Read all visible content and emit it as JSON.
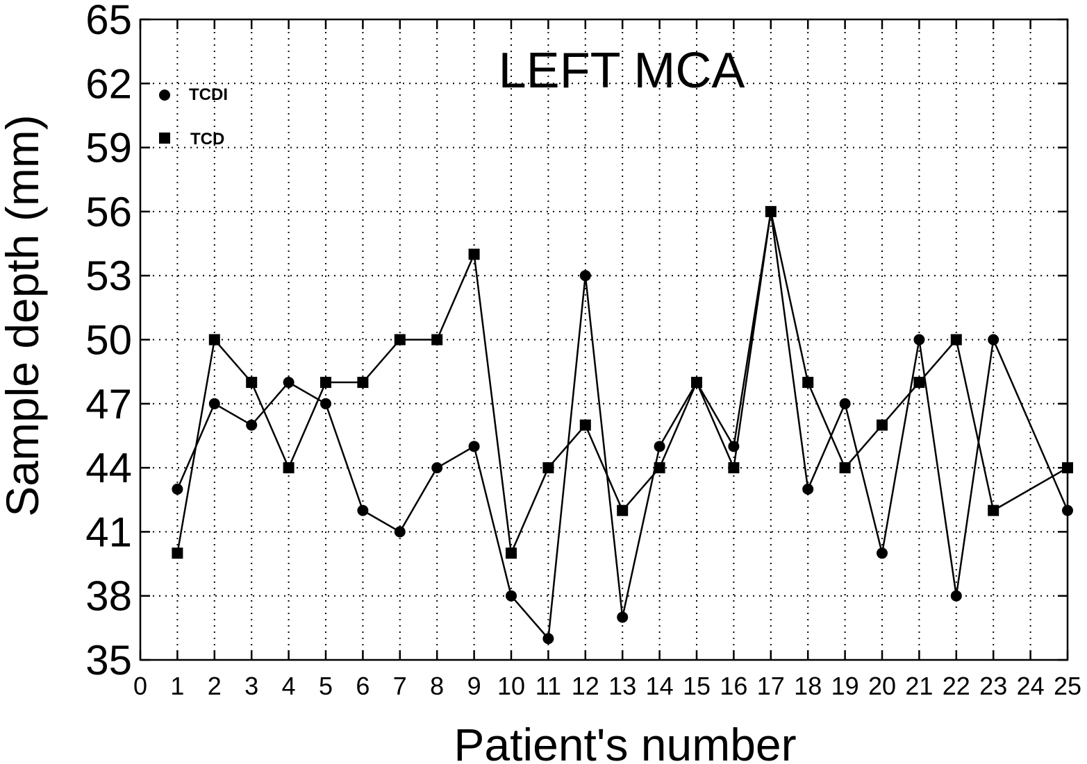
{
  "chart_data": {
    "type": "scatter",
    "title": "LEFT MCA",
    "xlabel": "Patient's number",
    "ylabel": "Sample depth (mm)",
    "xlim": [
      0,
      25
    ],
    "ylim": [
      35,
      65
    ],
    "xticks": [
      "0",
      "1",
      "2",
      "3",
      "4",
      "5",
      "6",
      "7",
      "8",
      "9",
      "10",
      "11",
      "12",
      "13",
      "14",
      "15",
      "16",
      "17",
      "18",
      "19",
      "20",
      "21",
      "22",
      "23",
      "24",
      "25"
    ],
    "yticks": [
      "35",
      "38",
      "41",
      "44",
      "47",
      "50",
      "53",
      "56",
      "59",
      "62",
      "65"
    ],
    "grid": true,
    "legend_position": "top-left",
    "series": [
      {
        "name": "TCDI",
        "marker": "circle",
        "x": [
          1,
          2,
          3,
          4,
          5,
          6,
          7,
          8,
          9,
          10,
          11,
          12,
          13,
          14,
          15,
          16,
          17,
          18,
          19,
          20,
          21,
          22,
          23,
          25
        ],
        "values": [
          43,
          47,
          46,
          48,
          47,
          42,
          41,
          44,
          45,
          38,
          36,
          53,
          37,
          45,
          48,
          45,
          56,
          43,
          47,
          40,
          50,
          38,
          50,
          42
        ]
      },
      {
        "name": "TCD",
        "marker": "square",
        "x": [
          1,
          2,
          3,
          4,
          5,
          6,
          7,
          8,
          9,
          10,
          11,
          12,
          13,
          14,
          15,
          16,
          17,
          18,
          19,
          20,
          21,
          22,
          23,
          25
        ],
        "values": [
          40,
          50,
          48,
          44,
          48,
          48,
          50,
          50,
          54,
          40,
          44,
          46,
          42,
          44,
          48,
          44,
          56,
          48,
          44,
          46,
          48,
          50,
          42,
          44
        ]
      }
    ],
    "colors": {
      "foreground": "#000000",
      "background": "#ffffff"
    }
  }
}
